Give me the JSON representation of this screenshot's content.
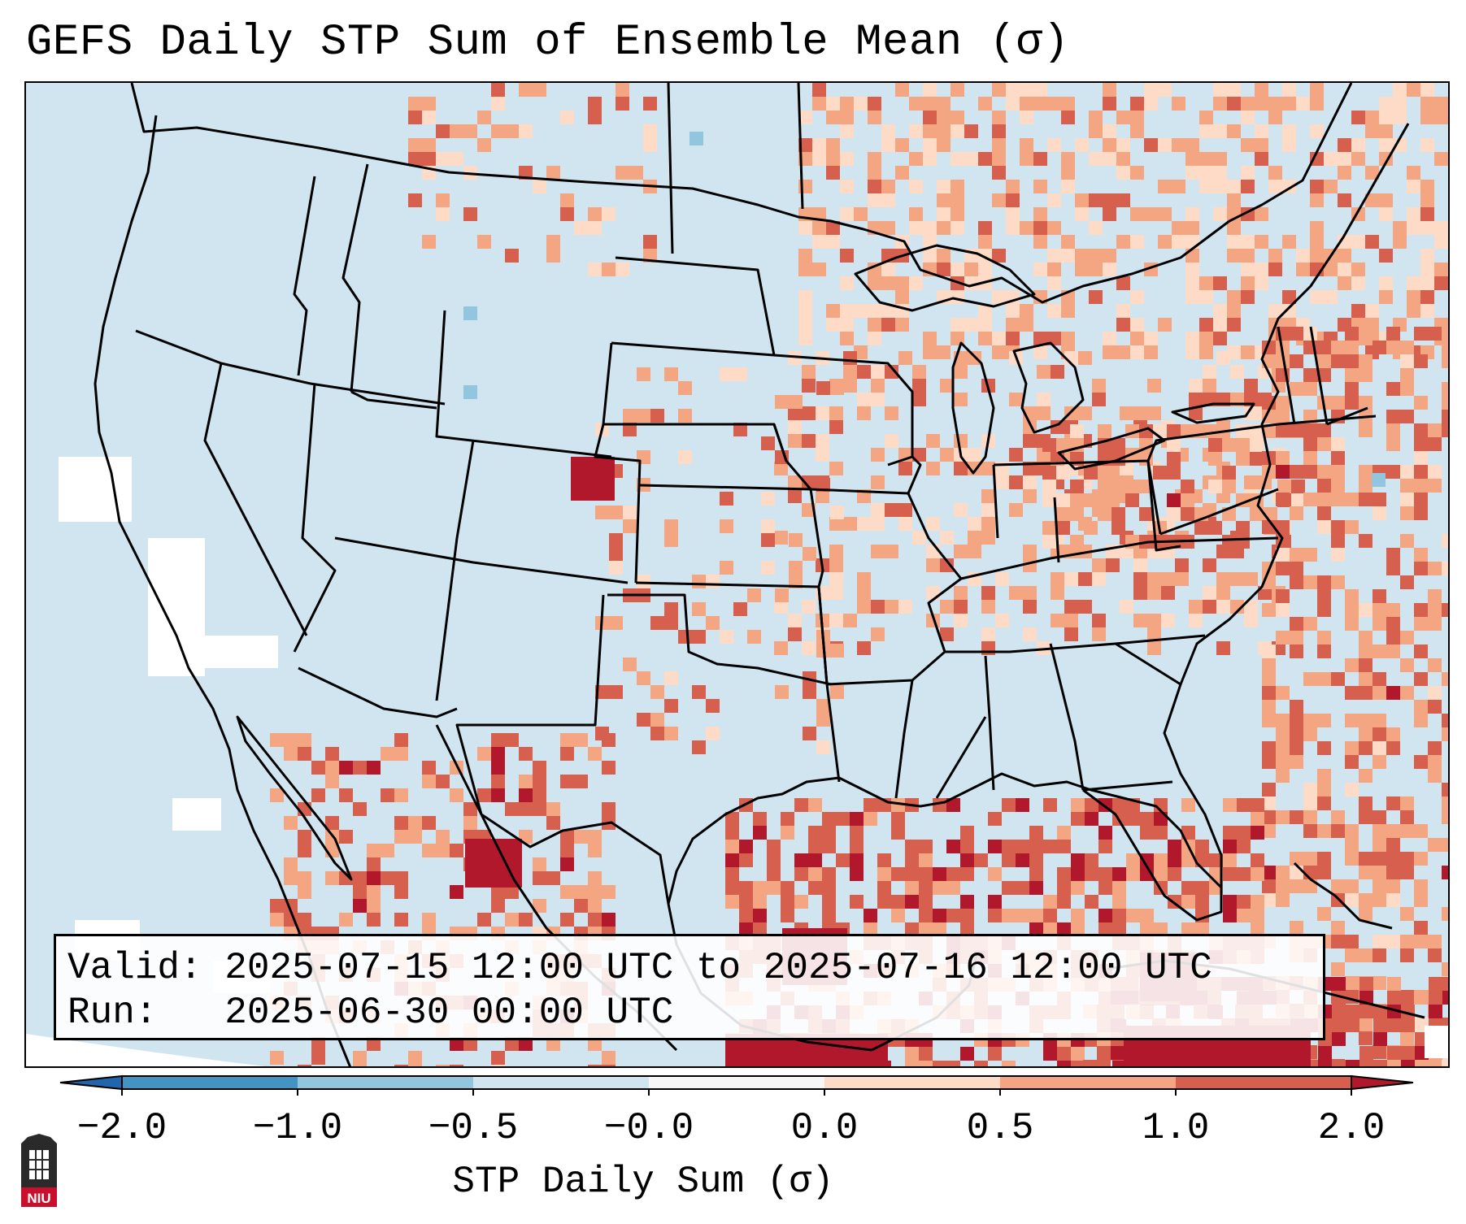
{
  "title": "GEFS Daily STP Sum of Ensemble Mean (σ)",
  "map": {
    "projection": "Lambert conformal, CONUS",
    "field": "STP Daily Sum anomaly (σ)",
    "background_color": "#d1e5f0",
    "offgrid_color": "#ffffff",
    "border_color": "#000000"
  },
  "info": {
    "valid_label": "Valid:",
    "valid_value": "2025-07-15 12:00 UTC to 2025-07-16 12:00 UTC",
    "run_label": "Run:",
    "run_value": "2025-06-30 00:00 UTC"
  },
  "colorbar": {
    "title": "STP Daily Sum (σ)",
    "ticks": [
      "−2.0",
      "−1.0",
      "−0.5",
      "−0.0",
      "0.0",
      "0.5",
      "1.0",
      "2.0"
    ],
    "bins": [
      {
        "range": "< -2.0",
        "color": "#2166ac"
      },
      {
        "range": "-2.0 to -1.0",
        "color": "#4393c3"
      },
      {
        "range": "-1.0 to -0.5",
        "color": "#92c5de"
      },
      {
        "range": "-0.5 to -0.0",
        "color": "#d1e5f0"
      },
      {
        "range": "-0.0 to 0.0",
        "color": "#f7f7f7"
      },
      {
        "range": "0.0 to 0.5",
        "color": "#fddbc7"
      },
      {
        "range": "0.5 to 1.0",
        "color": "#f4a582"
      },
      {
        "range": "1.0 to 2.0",
        "color": "#d6604d"
      },
      {
        "range": "> 2.0",
        "color": "#b2182b"
      }
    ]
  },
  "logo": {
    "text": "NIU",
    "name": "Northern Illinois University"
  }
}
